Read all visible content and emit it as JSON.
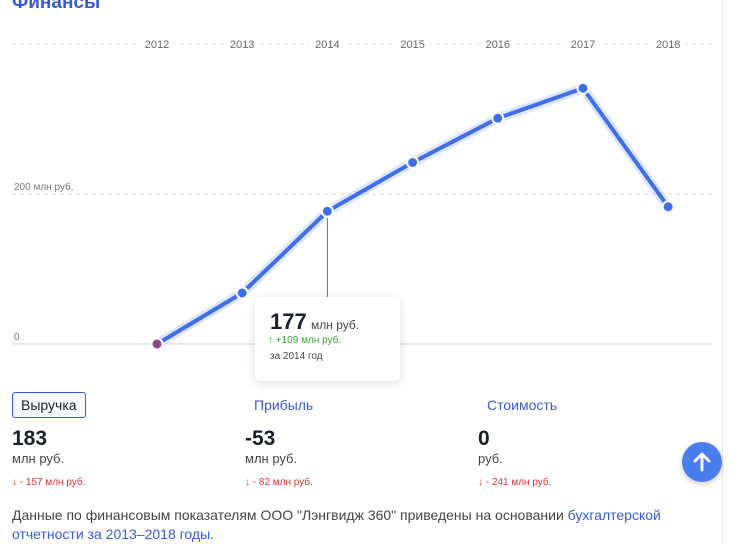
{
  "section_title": "Финансы",
  "chart_data": {
    "type": "line",
    "x": [
      "2012",
      "2013",
      "2014",
      "2015",
      "2016",
      "2017",
      "2018"
    ],
    "series": [
      {
        "values": [
          0,
          68,
          177,
          242,
          301,
          341,
          183
        ]
      }
    ],
    "ytick_labels": [
      "200 млн руб.",
      "0"
    ],
    "ylim": [
      0,
      400
    ],
    "grid": true
  },
  "tooltip": {
    "value": "177",
    "unit": "млн руб.",
    "delta": "↑ +109 млн руб.",
    "period": "за 2014 год"
  },
  "tabs": [
    {
      "label": "Выручка",
      "active": true
    },
    {
      "label": "Прибыль",
      "active": false
    },
    {
      "label": "Стоимость",
      "active": false
    }
  ],
  "metrics": [
    {
      "value": "183",
      "unit": "млн руб.",
      "delta": "↓ - 157 млн руб."
    },
    {
      "value": "-53",
      "unit": "млн руб.",
      "delta": "↓ - 82 млн руб."
    },
    {
      "value": "0",
      "unit": "руб.",
      "delta": "↓ - 241 млн руб."
    }
  ],
  "footer": {
    "text": "Данные по финансовым показателям ООО \"Лэнгвидж 360\" приведены на основании ",
    "link": "бухгалтерской отчетности за 2013–2018 годы",
    "end": "."
  },
  "colors": {
    "accent": "#3a5bd0",
    "line": "#3f6ee8",
    "up": "#3b9b3b",
    "down": "#d33333"
  },
  "icons": {
    "scroll_up": "arrow-up-icon"
  }
}
